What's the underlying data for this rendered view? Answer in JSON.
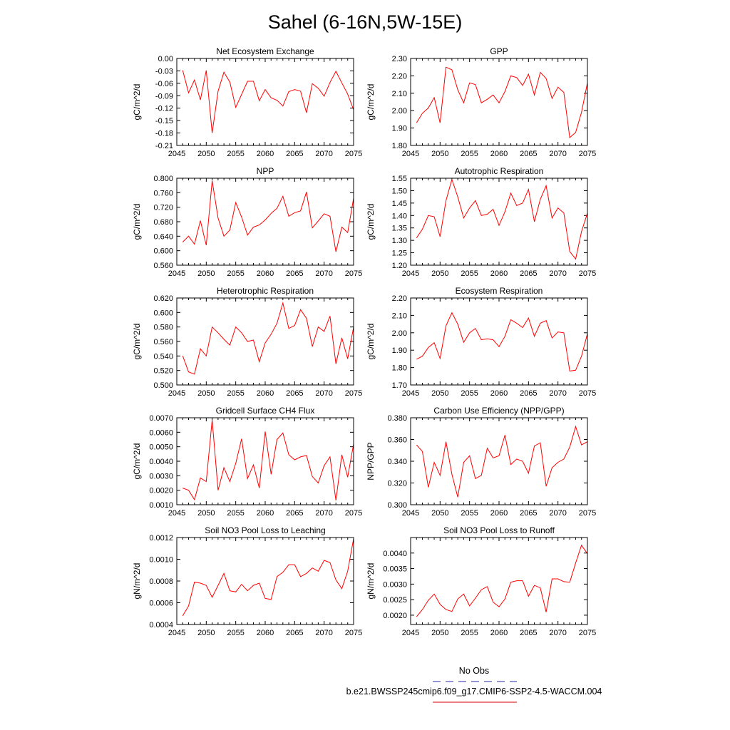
{
  "figure_title": "Sahel (6-16N,5W-15E)",
  "legend": {
    "obs_label": "No Obs",
    "obs_color": "#5555bb",
    "model_label": "b.e21.BWSSP245cmip6.f09_g17.CMIP6-SSP2-4.5-WACCM.004",
    "model_color": "#e03030"
  },
  "chart_data": [
    {
      "type": "line",
      "title": "Net Ecosystem Exchange",
      "xlabel": "",
      "ylabel": "gC/m^2/d",
      "xlim": [
        2045,
        2075
      ],
      "xticks": [
        2045,
        2050,
        2055,
        2060,
        2065,
        2070,
        2075
      ],
      "ylim": [
        -0.21,
        0.0
      ],
      "yticks": [
        0.0,
        -0.03,
        -0.06,
        -0.09,
        -0.12,
        -0.15,
        -0.18,
        -0.21
      ],
      "ytick_labels": [
        "0.00",
        "-0.03",
        "-0.06",
        "-0.09",
        "-0.12",
        "-0.15",
        "-0.18",
        "-0.21"
      ],
      "series": [
        {
          "name": "b.e21.BWSSP245cmip6.f09_g17.CMIP6-SSP2-4.5-WACCM.004",
          "color": "#ff0000",
          "x": [
            2046,
            2047,
            2048,
            2049,
            2050,
            2051,
            2052,
            2053,
            2054,
            2055,
            2056,
            2057,
            2058,
            2059,
            2060,
            2061,
            2062,
            2063,
            2064,
            2065,
            2066,
            2067,
            2068,
            2069,
            2070,
            2071,
            2072,
            2073,
            2074,
            2075
          ],
          "y": [
            -0.029,
            -0.083,
            -0.052,
            -0.1,
            -0.029,
            -0.18,
            -0.079,
            -0.033,
            -0.057,
            -0.118,
            -0.087,
            -0.055,
            -0.055,
            -0.102,
            -0.075,
            -0.095,
            -0.101,
            -0.115,
            -0.08,
            -0.075,
            -0.079,
            -0.131,
            -0.061,
            -0.072,
            -0.091,
            -0.058,
            -0.031,
            -0.059,
            -0.086,
            -0.124
          ]
        }
      ]
    },
    {
      "type": "line",
      "title": "GPP",
      "xlabel": "",
      "ylabel": "gC/m^2/d",
      "xlim": [
        2045,
        2075
      ],
      "xticks": [
        2045,
        2050,
        2055,
        2060,
        2065,
        2070,
        2075
      ],
      "ylim": [
        1.8,
        2.3
      ],
      "yticks": [
        2.3,
        2.2,
        2.1,
        2.0,
        1.9,
        1.8
      ],
      "ytick_labels": [
        "2.30",
        "2.20",
        "2.10",
        "2.00",
        "1.90",
        "1.80"
      ],
      "series": [
        {
          "name": "b.e21.BWSSP245cmip6.f09_g17.CMIP6-SSP2-4.5-WACCM.004",
          "color": "#ff0000",
          "x": [
            2046,
            2047,
            2048,
            2049,
            2050,
            2051,
            2052,
            2053,
            2054,
            2055,
            2056,
            2057,
            2058,
            2059,
            2060,
            2061,
            2062,
            2063,
            2064,
            2065,
            2066,
            2067,
            2068,
            2069,
            2070,
            2071,
            2072,
            2073,
            2074,
            2075
          ],
          "y": [
            1.93,
            1.985,
            2.015,
            2.075,
            1.93,
            2.25,
            2.235,
            2.12,
            2.045,
            2.16,
            2.15,
            2.045,
            2.065,
            2.09,
            2.045,
            2.11,
            2.2,
            2.19,
            2.145,
            2.21,
            2.09,
            2.22,
            2.185,
            2.07,
            2.135,
            2.105,
            1.845,
            1.875,
            1.99,
            2.16
          ]
        }
      ]
    },
    {
      "type": "line",
      "title": "NPP",
      "xlabel": "",
      "ylabel": "gC/m^2/d",
      "xlim": [
        2045,
        2075
      ],
      "xticks": [
        2045,
        2050,
        2055,
        2060,
        2065,
        2070,
        2075
      ],
      "ylim": [
        0.56,
        0.8
      ],
      "yticks": [
        0.8,
        0.76,
        0.72,
        0.68,
        0.64,
        0.6,
        0.56
      ],
      "ytick_labels": [
        "0.800",
        "0.760",
        "0.720",
        "0.680",
        "0.640",
        "0.600",
        "0.560"
      ],
      "series": [
        {
          "name": "b.e21.BWSSP245cmip6.f09_g17.CMIP6-SSP2-4.5-WACCM.004",
          "color": "#ff0000",
          "x": [
            2046,
            2047,
            2048,
            2049,
            2050,
            2051,
            2052,
            2053,
            2054,
            2055,
            2056,
            2057,
            2058,
            2059,
            2060,
            2061,
            2062,
            2063,
            2064,
            2065,
            2066,
            2067,
            2068,
            2069,
            2070,
            2071,
            2072,
            2073,
            2074,
            2075
          ],
          "y": [
            0.624,
            0.64,
            0.618,
            0.683,
            0.615,
            0.793,
            0.69,
            0.64,
            0.657,
            0.733,
            0.693,
            0.643,
            0.665,
            0.671,
            0.685,
            0.703,
            0.717,
            0.75,
            0.695,
            0.705,
            0.71,
            0.762,
            0.663,
            0.682,
            0.702,
            0.695,
            0.597,
            0.665,
            0.65,
            0.745
          ]
        }
      ]
    },
    {
      "type": "line",
      "title": "Autotrophic Respiration",
      "xlabel": "",
      "ylabel": "gC/m^2/d",
      "xlim": [
        2045,
        2075
      ],
      "xticks": [
        2045,
        2050,
        2055,
        2060,
        2065,
        2070,
        2075
      ],
      "ylim": [
        1.2,
        1.55
      ],
      "yticks": [
        1.55,
        1.5,
        1.45,
        1.4,
        1.35,
        1.3,
        1.25,
        1.2
      ],
      "ytick_labels": [
        "1.55",
        "1.50",
        "1.45",
        "1.40",
        "1.35",
        "1.30",
        "1.25",
        "1.20"
      ],
      "series": [
        {
          "name": "b.e21.BWSSP245cmip6.f09_g17.CMIP6-SSP2-4.5-WACCM.004",
          "color": "#ff0000",
          "x": [
            2046,
            2047,
            2048,
            2049,
            2050,
            2051,
            2052,
            2053,
            2054,
            2055,
            2056,
            2057,
            2058,
            2059,
            2060,
            2061,
            2062,
            2063,
            2064,
            2065,
            2066,
            2067,
            2068,
            2069,
            2070,
            2071,
            2072,
            2073,
            2074,
            2075
          ],
          "y": [
            1.31,
            1.345,
            1.4,
            1.395,
            1.315,
            1.46,
            1.545,
            1.475,
            1.39,
            1.43,
            1.46,
            1.4,
            1.405,
            1.425,
            1.36,
            1.415,
            1.49,
            1.44,
            1.45,
            1.505,
            1.375,
            1.465,
            1.52,
            1.39,
            1.43,
            1.41,
            1.255,
            1.225,
            1.335,
            1.41
          ]
        }
      ]
    },
    {
      "type": "line",
      "title": "Heterotrophic Respiration",
      "xlabel": "",
      "ylabel": "gC/m^2/d",
      "xlim": [
        2045,
        2075
      ],
      "xticks": [
        2045,
        2050,
        2055,
        2060,
        2065,
        2070,
        2075
      ],
      "ylim": [
        0.5,
        0.62
      ],
      "yticks": [
        0.62,
        0.6,
        0.58,
        0.56,
        0.54,
        0.52,
        0.5
      ],
      "ytick_labels": [
        "0.620",
        "0.600",
        "0.580",
        "0.560",
        "0.540",
        "0.520",
        "0.500"
      ],
      "series": [
        {
          "name": "b.e21.BWSSP245cmip6.f09_g17.CMIP6-SSP2-4.5-WACCM.004",
          "color": "#ff0000",
          "x": [
            2046,
            2047,
            2048,
            2049,
            2050,
            2051,
            2052,
            2053,
            2054,
            2055,
            2056,
            2057,
            2058,
            2059,
            2060,
            2061,
            2062,
            2063,
            2064,
            2065,
            2066,
            2067,
            2068,
            2069,
            2070,
            2071,
            2072,
            2073,
            2074,
            2075
          ],
          "y": [
            0.54,
            0.518,
            0.515,
            0.55,
            0.54,
            0.58,
            0.572,
            0.563,
            0.555,
            0.58,
            0.572,
            0.56,
            0.562,
            0.532,
            0.558,
            0.57,
            0.585,
            0.613,
            0.578,
            0.582,
            0.604,
            0.592,
            0.553,
            0.58,
            0.574,
            0.595,
            0.529,
            0.565,
            0.536,
            0.58
          ]
        }
      ]
    },
    {
      "type": "line",
      "title": "Ecosystem Respiration",
      "xlabel": "",
      "ylabel": "gC/m^2/d",
      "xlim": [
        2045,
        2075
      ],
      "xticks": [
        2045,
        2050,
        2055,
        2060,
        2065,
        2070,
        2075
      ],
      "ylim": [
        1.7,
        2.2
      ],
      "yticks": [
        2.2,
        2.1,
        2.0,
        1.9,
        1.8,
        1.7
      ],
      "ytick_labels": [
        "2.20",
        "2.10",
        "2.00",
        "1.90",
        "1.80",
        "1.70"
      ],
      "series": [
        {
          "name": "b.e21.BWSSP245cmip6.f09_g17.CMIP6-SSP2-4.5-WACCM.004",
          "color": "#ff0000",
          "x": [
            2046,
            2047,
            2048,
            2049,
            2050,
            2051,
            2052,
            2053,
            2054,
            2055,
            2056,
            2057,
            2058,
            2059,
            2060,
            2061,
            2062,
            2063,
            2064,
            2065,
            2066,
            2067,
            2068,
            2069,
            2070,
            2071,
            2072,
            2073,
            2074,
            2075
          ],
          "y": [
            1.848,
            1.865,
            1.915,
            1.943,
            1.852,
            2.04,
            2.115,
            2.05,
            1.945,
            2.0,
            2.025,
            1.96,
            1.965,
            1.96,
            1.92,
            1.98,
            2.075,
            2.055,
            2.03,
            2.085,
            1.98,
            2.055,
            2.07,
            1.97,
            2.005,
            2.0,
            1.78,
            1.785,
            1.865,
            1.995
          ]
        }
      ]
    },
    {
      "type": "line",
      "title": "Gridcell Surface CH4 Flux",
      "xlabel": "",
      "ylabel": "gC/m^2/d",
      "xlim": [
        2045,
        2075
      ],
      "xticks": [
        2045,
        2050,
        2055,
        2060,
        2065,
        2070,
        2075
      ],
      "ylim": [
        0.001,
        0.007
      ],
      "yticks": [
        0.007,
        0.006,
        0.005,
        0.004,
        0.003,
        0.002,
        0.001
      ],
      "ytick_labels": [
        "0.0070",
        "0.0060",
        "0.0050",
        "0.0040",
        "0.0030",
        "0.0020",
        "0.0010"
      ],
      "series": [
        {
          "name": "b.e21.BWSSP245cmip6.f09_g17.CMIP6-SSP2-4.5-WACCM.004",
          "color": "#ff0000",
          "x": [
            2046,
            2047,
            2048,
            2049,
            2050,
            2051,
            2052,
            2053,
            2054,
            2055,
            2056,
            2057,
            2058,
            2059,
            2060,
            2061,
            2062,
            2063,
            2064,
            2065,
            2066,
            2067,
            2068,
            2069,
            2070,
            2071,
            2072,
            2073,
            2074,
            2075
          ],
          "y": [
            0.00215,
            0.002,
            0.00135,
            0.00285,
            0.0026,
            0.00685,
            0.002,
            0.00355,
            0.0026,
            0.00385,
            0.00555,
            0.0028,
            0.00375,
            0.00215,
            0.00605,
            0.0031,
            0.0055,
            0.00595,
            0.00445,
            0.0041,
            0.0043,
            0.0044,
            0.00295,
            0.0025,
            0.0037,
            0.0043,
            0.0013,
            0.00445,
            0.0029,
            0.0052
          ]
        }
      ]
    },
    {
      "type": "line",
      "title": "Carbon Use Efficiency (NPP/GPP)",
      "xlabel": "",
      "ylabel": "NPP/GPP",
      "xlim": [
        2045,
        2075
      ],
      "xticks": [
        2045,
        2050,
        2055,
        2060,
        2065,
        2070,
        2075
      ],
      "ylim": [
        0.3,
        0.38
      ],
      "yticks": [
        0.38,
        0.36,
        0.34,
        0.32,
        0.3
      ],
      "ytick_labels": [
        "0.380",
        "0.360",
        "0.340",
        "0.320",
        "0.300"
      ],
      "series": [
        {
          "name": "b.e21.BWSSP245cmip6.f09_g17.CMIP6-SSP2-4.5-WACCM.004",
          "color": "#ff0000",
          "x": [
            2046,
            2047,
            2048,
            2049,
            2050,
            2051,
            2052,
            2053,
            2054,
            2055,
            2056,
            2057,
            2058,
            2059,
            2060,
            2061,
            2062,
            2063,
            2064,
            2065,
            2066,
            2067,
            2068,
            2069,
            2070,
            2071,
            2072,
            2073,
            2074,
            2075
          ],
          "y": [
            0.355,
            0.349,
            0.316,
            0.339,
            0.327,
            0.358,
            0.328,
            0.307,
            0.339,
            0.345,
            0.324,
            0.327,
            0.352,
            0.343,
            0.345,
            0.364,
            0.337,
            0.342,
            0.34,
            0.329,
            0.354,
            0.357,
            0.317,
            0.334,
            0.339,
            0.342,
            0.353,
            0.372,
            0.355,
            0.358
          ]
        }
      ]
    },
    {
      "type": "line",
      "title": "Soil NO3 Pool Loss to Leaching",
      "xlabel": "",
      "ylabel": "gN/m^2/d",
      "xlim": [
        2045,
        2075
      ],
      "xticks": [
        2045,
        2050,
        2055,
        2060,
        2065,
        2070,
        2075
      ],
      "ylim": [
        0.0004,
        0.0012
      ],
      "yticks": [
        0.0012,
        0.001,
        0.0008,
        0.0006,
        0.0004
      ],
      "ytick_labels": [
        "0.0012",
        "0.0010",
        "0.0008",
        "0.0006",
        "0.0004"
      ],
      "series": [
        {
          "name": "b.e21.BWSSP245cmip6.f09_g17.CMIP6-SSP2-4.5-WACCM.004",
          "color": "#ff0000",
          "x": [
            2046,
            2047,
            2048,
            2049,
            2050,
            2051,
            2052,
            2053,
            2054,
            2055,
            2056,
            2057,
            2058,
            2059,
            2060,
            2061,
            2062,
            2063,
            2064,
            2065,
            2066,
            2067,
            2068,
            2069,
            2070,
            2071,
            2072,
            2073,
            2074,
            2075
          ],
          "y": [
            0.00048,
            0.00057,
            0.00079,
            0.00078,
            0.00076,
            0.00065,
            0.00076,
            0.00087,
            0.00071,
            0.0007,
            0.00077,
            0.00071,
            0.00076,
            0.00078,
            0.00064,
            0.00063,
            0.00084,
            0.00088,
            0.00095,
            0.00095,
            0.00084,
            0.00087,
            0.00092,
            0.00089,
            0.00099,
            0.00097,
            0.00081,
            0.00073,
            0.00089,
            0.00119
          ]
        }
      ]
    },
    {
      "type": "line",
      "title": "Soil NO3 Pool Loss to Runoff",
      "xlabel": "",
      "ylabel": "gN/m^2/d",
      "xlim": [
        2045,
        2075
      ],
      "xticks": [
        2045,
        2050,
        2055,
        2060,
        2065,
        2070,
        2075
      ],
      "ylim": [
        0.0017,
        0.0045
      ],
      "yticks": [
        0.004,
        0.0035,
        0.003,
        0.0025,
        0.002
      ],
      "ytick_labels": [
        "0.0040",
        "0.0035",
        "0.0030",
        "0.0025",
        "0.0020"
      ],
      "series": [
        {
          "name": "b.e21.BWSSP245cmip6.f09_g17.CMIP6-SSP2-4.5-WACCM.004",
          "color": "#ff0000",
          "x": [
            2046,
            2047,
            2048,
            2049,
            2050,
            2051,
            2052,
            2053,
            2054,
            2055,
            2056,
            2057,
            2058,
            2059,
            2060,
            2061,
            2062,
            2063,
            2064,
            2065,
            2066,
            2067,
            2068,
            2069,
            2070,
            2071,
            2072,
            2073,
            2074,
            2075
          ],
          "y": [
            0.00195,
            0.00218,
            0.00248,
            0.00268,
            0.00235,
            0.00218,
            0.00212,
            0.00252,
            0.00268,
            0.0023,
            0.00255,
            0.00282,
            0.00292,
            0.00242,
            0.00227,
            0.00252,
            0.00306,
            0.00311,
            0.00311,
            0.00261,
            0.00296,
            0.00288,
            0.0021,
            0.00317,
            0.00317,
            0.00308,
            0.00306,
            0.00368,
            0.00425,
            0.00398
          ]
        }
      ]
    }
  ]
}
